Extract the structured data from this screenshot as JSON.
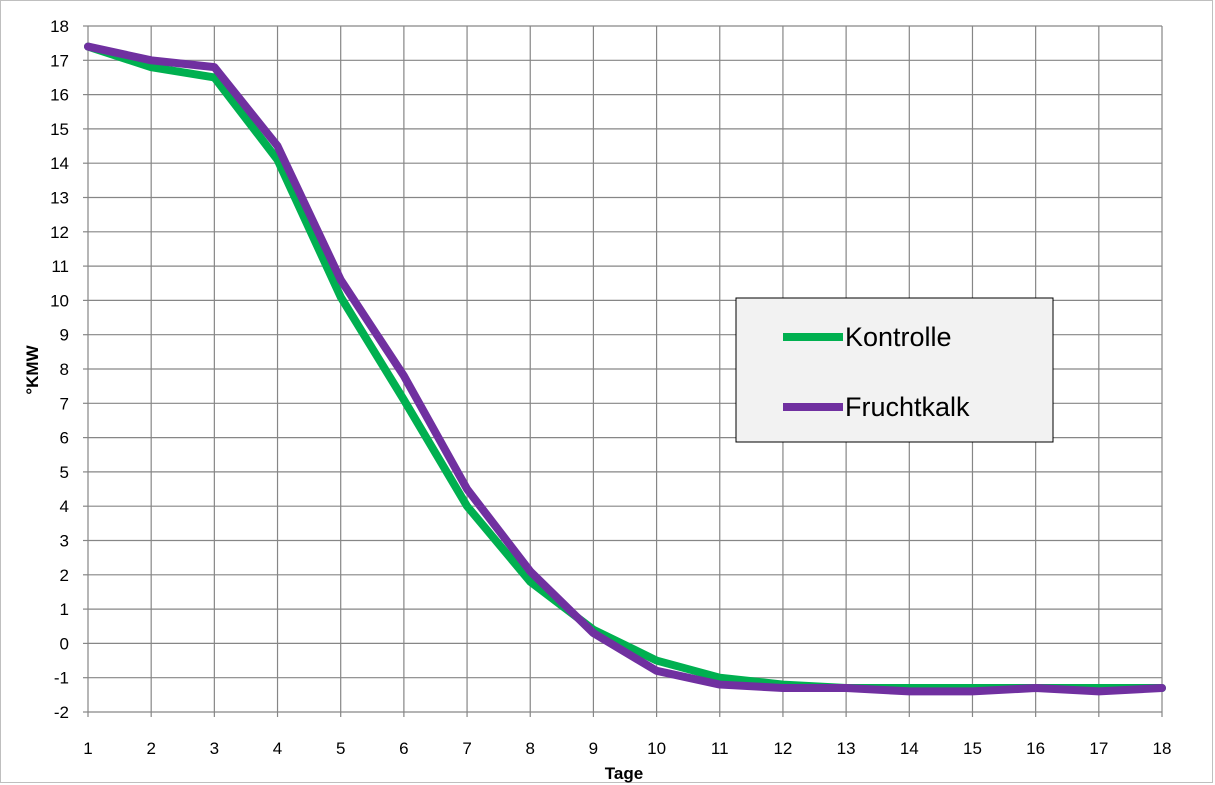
{
  "chart_data": {
    "type": "line",
    "title": "",
    "xlabel": "Tage",
    "ylabel": "°KMW",
    "x": [
      1,
      2,
      3,
      4,
      5,
      6,
      7,
      8,
      9,
      10,
      11,
      12,
      13,
      14,
      15,
      16,
      17,
      18
    ],
    "xlim": [
      1,
      18
    ],
    "ylim": [
      -2,
      18
    ],
    "yticks": [
      -2,
      -1,
      0,
      1,
      2,
      3,
      4,
      5,
      6,
      7,
      8,
      9,
      10,
      11,
      12,
      13,
      14,
      15,
      16,
      17,
      18
    ],
    "grid": true,
    "legend_position": "right",
    "series": [
      {
        "name": "Kontrolle",
        "color": "#00b050",
        "values": [
          17.4,
          16.8,
          16.5,
          14.1,
          10.1,
          7.1,
          4.0,
          1.8,
          0.4,
          -0.5,
          -1.0,
          -1.2,
          -1.3,
          -1.3,
          -1.3,
          -1.3,
          -1.3,
          -1.3
        ]
      },
      {
        "name": "Fruchtkalk",
        "color": "#7030a0",
        "values": [
          17.4,
          17.0,
          16.8,
          14.5,
          10.6,
          7.8,
          4.5,
          2.1,
          0.3,
          -0.8,
          -1.2,
          -1.3,
          -1.3,
          -1.4,
          -1.4,
          -1.3,
          -1.4,
          -1.3
        ]
      }
    ]
  }
}
